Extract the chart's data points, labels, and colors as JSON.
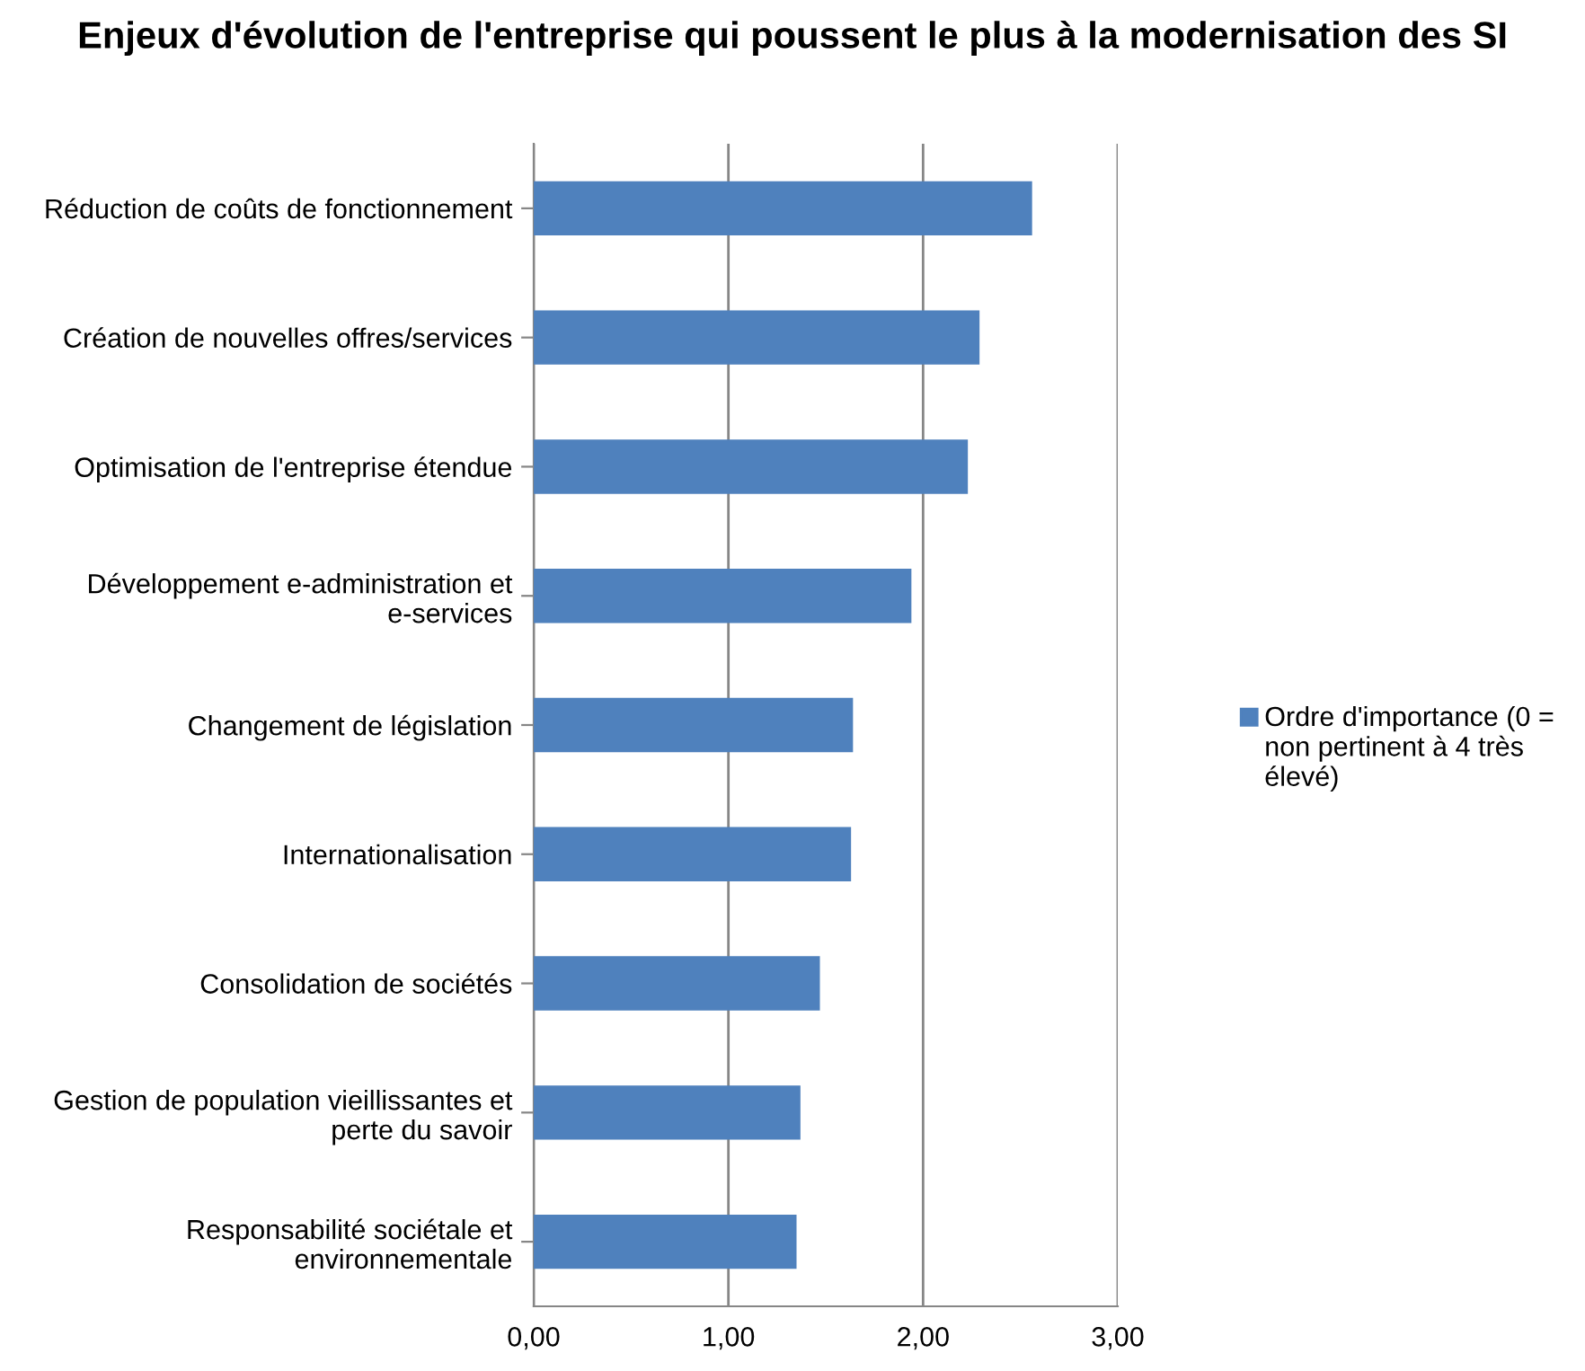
{
  "chart_data": {
    "type": "bar",
    "orientation": "horizontal",
    "title": "Enjeux d'évolution de l'entreprise qui poussent le plus à la modernisation des SI",
    "categories": [
      "Réduction de coûts de fonctionnement",
      "Création de nouvelles offres/services",
      "Optimisation de l'entreprise étendue",
      "Développement e-administration et e-services",
      "Changement de législation",
      "Internationalisation",
      "Consolidation de sociétés",
      "Gestion de population vieillissantes et perte du savoir",
      "Responsabilité sociétale et environnementale"
    ],
    "series": [
      {
        "name": "Ordre d'importance (0 = non pertinent à 4 très élevé)",
        "color": "#4f81bd",
        "values": [
          2.56,
          2.29,
          2.23,
          1.94,
          1.64,
          1.63,
          1.47,
          1.37,
          1.35
        ]
      }
    ],
    "xlim": [
      0,
      3
    ],
    "xticks": [
      {
        "value": 0,
        "label": "0,00"
      },
      {
        "value": 1,
        "label": "1,00"
      },
      {
        "value": 2,
        "label": "2,00"
      },
      {
        "value": 3,
        "label": "3,00"
      }
    ],
    "grid": "x",
    "legend": "right"
  }
}
